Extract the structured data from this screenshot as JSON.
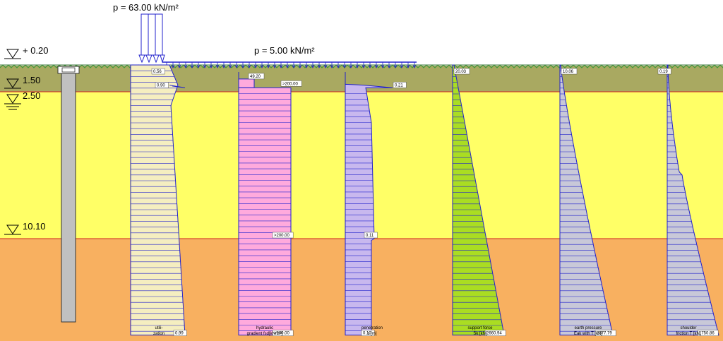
{
  "loads": {
    "concentrated": "p = 63.00 kN/m²",
    "distributed": "p = 5.00 kN/m²"
  },
  "levels": [
    {
      "value": "+ 0.20",
      "depth": 0.2
    },
    {
      "value": "1.50",
      "depth": 1.5
    },
    {
      "value": "2.50",
      "depth": 2.5
    },
    {
      "value": "10.10",
      "depth": 10.1
    }
  ],
  "colors": {
    "topsoil": "#a9a961",
    "sand": "#ffff66",
    "clay": "#f8b060",
    "grass": "#3c9a3c",
    "outline": "#2222cc",
    "layer_line": "#cc2222"
  },
  "diagrams": [
    {
      "id": "utilization",
      "caption_lines": [
        "utili-",
        "zation"
      ],
      "fill": "#f5eec0",
      "values": [
        {
          "label": "0.56",
          "depth": 0.2
        },
        {
          "label": "0.90",
          "depth": 1.35
        },
        {
          "label": "0.99",
          "depth": 15.6
        }
      ]
    },
    {
      "id": "hydraulic-gradient",
      "caption_lines": [
        "hydraulic",
        "gradient fsd[kN/m²]"
      ],
      "fill": "#ffaadd",
      "values": [
        {
          "label": "49.20",
          "depth": 1.0
        },
        {
          "label": ">200.00",
          "depth": 1.5
        },
        {
          "label": ">200.00",
          "depth": 10.1
        },
        {
          "label": ">200.00",
          "depth": 15.6
        }
      ]
    },
    {
      "id": "penetration",
      "caption_lines": [
        "penetration",
        "s [m]"
      ],
      "fill": "#c8b8ee",
      "values": [
        {
          "label": "0.21",
          "depth": 1.5
        },
        {
          "label": "0.11",
          "depth": 10.1
        },
        {
          "label": "0.10",
          "depth": 15.6
        }
      ]
    },
    {
      "id": "support-force",
      "caption_lines": [
        "support force",
        "Sk [kN]"
      ],
      "fill": "#aadd22",
      "values": [
        {
          "label": "20.03",
          "depth": 0.2
        },
        {
          "label": "2660.94",
          "depth": 15.6
        }
      ]
    },
    {
      "id": "earth-pressure",
      "caption_lines": [
        "earth pressure",
        "Eak with T [kN]"
      ],
      "fill": "#c8c8d8",
      "values": [
        {
          "label": "10.06",
          "depth": 0.2
        },
        {
          "label": "2377.79",
          "depth": 15.6
        }
      ]
    },
    {
      "id": "shoulder-friction",
      "caption_lines": [
        "shoulder",
        "friction T [kN]"
      ],
      "fill": "#c8c8d8",
      "values": [
        {
          "label": "0.19",
          "depth": 0.2
        },
        {
          "label": "1750.86",
          "depth": 15.6
        }
      ]
    }
  ]
}
